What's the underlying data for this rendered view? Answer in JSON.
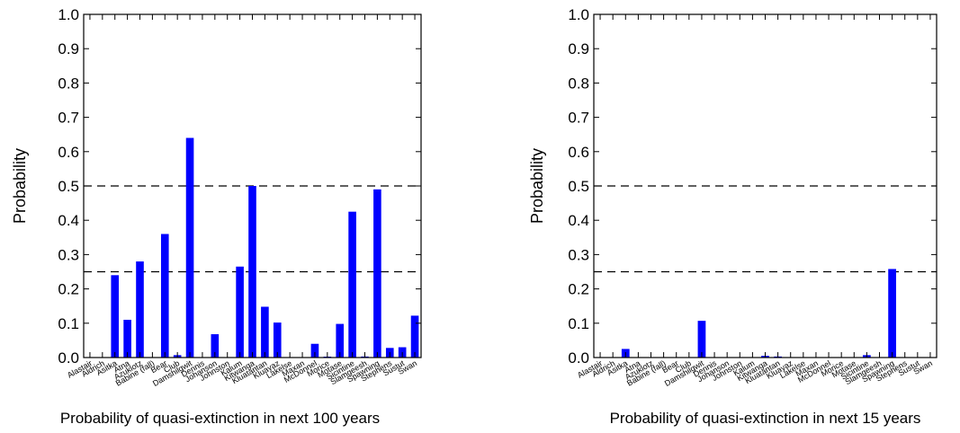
{
  "chart_data": [
    {
      "type": "bar",
      "xlabel": "Probability of quasi-extinction in next 100 years",
      "ylabel": "Probability",
      "ylim": [
        0,
        1.0
      ],
      "yticks": [
        0.0,
        0.1,
        0.2,
        0.3,
        0.4,
        0.5,
        0.6,
        0.7,
        0.8,
        0.9,
        1.0
      ],
      "reference_lines": [
        0.25,
        0.5
      ],
      "bar_color": "#0000ff",
      "categories": [
        "Alastair",
        "Aldrich",
        "Asitka",
        "Atna",
        "Azuklotz",
        "Babine (fall)",
        "Bear",
        "Club",
        "Damshilgwit",
        "Dennis",
        "Johanson",
        "Johnston",
        "Kalum",
        "Kitwanga",
        "Kluatantan",
        "Kluayaz",
        "Lakelse",
        "Maxan",
        "McDonnel",
        "Morice",
        "Motase",
        "Sicintine",
        "Slamgeesh",
        "Spawning",
        "Stephens",
        "Sustut",
        "Swan"
      ],
      "values": [
        0,
        0,
        0.24,
        0.11,
        0.28,
        0,
        0.36,
        0.007,
        0.64,
        0,
        0.068,
        0,
        0.265,
        0.5,
        0.148,
        0.102,
        0,
        0,
        0.04,
        0.002,
        0.098,
        0.425,
        0.003,
        0.49,
        0.028,
        0.03,
        0.122
      ]
    },
    {
      "type": "bar",
      "xlabel": "Probability of quasi-extinction in next 15 years",
      "ylabel": "Probability",
      "ylim": [
        0,
        1.0
      ],
      "yticks": [
        0.0,
        0.1,
        0.2,
        0.3,
        0.4,
        0.5,
        0.6,
        0.7,
        0.8,
        0.9,
        1.0
      ],
      "reference_lines": [
        0.25,
        0.5
      ],
      "bar_color": "#0000ff",
      "categories": [
        "Alastair",
        "Aldrich",
        "Asitka",
        "Atna",
        "Azuklotz",
        "Babine (fall)",
        "Bear",
        "Club",
        "Damshilgwit",
        "Dennis",
        "Johanson",
        "Johnston",
        "Kalum",
        "Kitwanga",
        "Kluatantan",
        "Kluayaz",
        "Lakelse",
        "Maxan",
        "McDonnel",
        "Morice",
        "Motase",
        "Sicintine",
        "Slamgeesh",
        "Spawning",
        "Stephens",
        "Sustut",
        "Swan"
      ],
      "values": [
        0,
        0,
        0.025,
        0,
        0,
        0,
        0,
        0,
        0.107,
        0,
        0,
        0,
        0,
        0.005,
        0.003,
        0,
        0,
        0,
        0,
        0,
        0,
        0.007,
        0,
        0.258,
        0,
        0,
        0
      ]
    }
  ]
}
